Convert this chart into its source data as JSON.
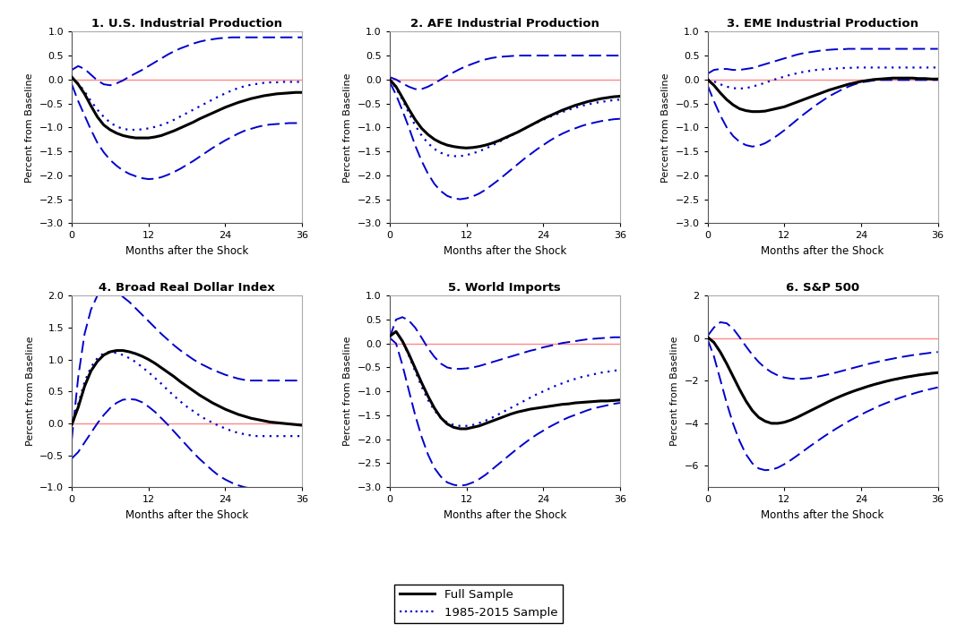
{
  "titles": [
    "1. U.S. Industrial Production",
    "2. AFE Industrial Production",
    "3. EME Industrial Production",
    "4. Broad Real Dollar Index",
    "5. World Imports",
    "6. S&P 500"
  ],
  "xlabel": "Months after the Shock",
  "ylabel": "Percent from Baseline",
  "x": [
    0,
    1,
    2,
    3,
    4,
    5,
    6,
    7,
    8,
    9,
    10,
    11,
    12,
    13,
    14,
    15,
    16,
    17,
    18,
    19,
    20,
    21,
    22,
    23,
    24,
    25,
    26,
    27,
    28,
    29,
    30,
    31,
    32,
    33,
    34,
    35,
    36
  ],
  "panels": {
    "p1": {
      "full_median": [
        0.05,
        -0.1,
        -0.3,
        -0.55,
        -0.78,
        -0.95,
        -1.05,
        -1.12,
        -1.17,
        -1.2,
        -1.22,
        -1.22,
        -1.22,
        -1.2,
        -1.17,
        -1.12,
        -1.07,
        -1.01,
        -0.95,
        -0.89,
        -0.82,
        -0.76,
        -0.7,
        -0.64,
        -0.58,
        -0.53,
        -0.48,
        -0.44,
        -0.4,
        -0.37,
        -0.34,
        -0.32,
        -0.3,
        -0.29,
        -0.28,
        -0.27,
        -0.27
      ],
      "full_upper": [
        0.2,
        0.28,
        0.22,
        0.1,
        -0.02,
        -0.1,
        -0.12,
        -0.08,
        -0.02,
        0.06,
        0.13,
        0.2,
        0.28,
        0.36,
        0.44,
        0.52,
        0.59,
        0.65,
        0.7,
        0.75,
        0.79,
        0.82,
        0.84,
        0.86,
        0.87,
        0.88,
        0.88,
        0.88,
        0.88,
        0.88,
        0.88,
        0.88,
        0.88,
        0.88,
        0.88,
        0.88,
        0.88
      ],
      "full_lower": [
        -0.1,
        -0.45,
        -0.75,
        -1.05,
        -1.32,
        -1.52,
        -1.68,
        -1.8,
        -1.9,
        -1.97,
        -2.02,
        -2.06,
        -2.08,
        -2.07,
        -2.04,
        -1.99,
        -1.93,
        -1.86,
        -1.78,
        -1.7,
        -1.61,
        -1.52,
        -1.43,
        -1.35,
        -1.27,
        -1.2,
        -1.13,
        -1.07,
        -1.03,
        -0.99,
        -0.96,
        -0.94,
        -0.93,
        -0.92,
        -0.91,
        -0.91,
        -0.91
      ],
      "sub_median": [
        0.05,
        -0.08,
        -0.25,
        -0.45,
        -0.63,
        -0.78,
        -0.9,
        -0.98,
        -1.03,
        -1.05,
        -1.05,
        -1.04,
        -1.02,
        -0.99,
        -0.95,
        -0.9,
        -0.84,
        -0.77,
        -0.7,
        -0.63,
        -0.56,
        -0.49,
        -0.42,
        -0.35,
        -0.29,
        -0.23,
        -0.18,
        -0.14,
        -0.11,
        -0.09,
        -0.07,
        -0.06,
        -0.06,
        -0.05,
        -0.05,
        -0.05,
        -0.05
      ],
      "ylim": [
        -3,
        1
      ],
      "yticks": [
        -3,
        -2.5,
        -2,
        -1.5,
        -1,
        -0.5,
        0,
        0.5,
        1
      ]
    },
    "p2": {
      "full_median": [
        0.0,
        -0.15,
        -0.38,
        -0.62,
        -0.84,
        -1.02,
        -1.15,
        -1.25,
        -1.32,
        -1.37,
        -1.4,
        -1.42,
        -1.43,
        -1.42,
        -1.4,
        -1.37,
        -1.33,
        -1.28,
        -1.22,
        -1.16,
        -1.1,
        -1.03,
        -0.96,
        -0.89,
        -0.82,
        -0.76,
        -0.7,
        -0.64,
        -0.59,
        -0.54,
        -0.5,
        -0.46,
        -0.43,
        -0.4,
        -0.38,
        -0.36,
        -0.35
      ],
      "full_upper": [
        0.05,
        0.0,
        -0.08,
        -0.15,
        -0.2,
        -0.2,
        -0.15,
        -0.08,
        0.0,
        0.08,
        0.15,
        0.22,
        0.28,
        0.33,
        0.38,
        0.42,
        0.45,
        0.47,
        0.48,
        0.49,
        0.5,
        0.5,
        0.5,
        0.5,
        0.5,
        0.5,
        0.5,
        0.5,
        0.5,
        0.5,
        0.5,
        0.5,
        0.5,
        0.5,
        0.5,
        0.5,
        0.5
      ],
      "full_lower": [
        -0.05,
        -0.32,
        -0.65,
        -1.0,
        -1.38,
        -1.7,
        -1.97,
        -2.18,
        -2.33,
        -2.43,
        -2.48,
        -2.5,
        -2.48,
        -2.44,
        -2.38,
        -2.3,
        -2.2,
        -2.1,
        -1.99,
        -1.88,
        -1.77,
        -1.66,
        -1.56,
        -1.46,
        -1.37,
        -1.28,
        -1.2,
        -1.13,
        -1.07,
        -1.02,
        -0.97,
        -0.93,
        -0.9,
        -0.87,
        -0.85,
        -0.83,
        -0.82
      ],
      "sub_median": [
        0.0,
        -0.18,
        -0.42,
        -0.7,
        -0.96,
        -1.17,
        -1.33,
        -1.45,
        -1.53,
        -1.58,
        -1.6,
        -1.6,
        -1.58,
        -1.54,
        -1.5,
        -1.44,
        -1.38,
        -1.31,
        -1.24,
        -1.17,
        -1.1,
        -1.03,
        -0.96,
        -0.9,
        -0.84,
        -0.78,
        -0.73,
        -0.68,
        -0.63,
        -0.59,
        -0.55,
        -0.52,
        -0.49,
        -0.47,
        -0.45,
        -0.43,
        -0.42
      ],
      "ylim": [
        -3,
        1
      ],
      "yticks": [
        -3,
        -2.5,
        -2,
        -1.5,
        -1,
        -0.5,
        0,
        0.5,
        1
      ]
    },
    "p3": {
      "full_median": [
        0.0,
        -0.12,
        -0.28,
        -0.42,
        -0.53,
        -0.61,
        -0.65,
        -0.67,
        -0.67,
        -0.66,
        -0.63,
        -0.6,
        -0.57,
        -0.52,
        -0.47,
        -0.42,
        -0.37,
        -0.32,
        -0.27,
        -0.22,
        -0.18,
        -0.14,
        -0.1,
        -0.07,
        -0.04,
        -0.02,
        0.0,
        0.01,
        0.02,
        0.03,
        0.03,
        0.03,
        0.03,
        0.02,
        0.02,
        0.01,
        0.01
      ],
      "full_upper": [
        0.12,
        0.2,
        0.22,
        0.22,
        0.2,
        0.2,
        0.22,
        0.24,
        0.28,
        0.32,
        0.36,
        0.4,
        0.44,
        0.48,
        0.52,
        0.55,
        0.57,
        0.59,
        0.61,
        0.62,
        0.63,
        0.63,
        0.64,
        0.64,
        0.64,
        0.64,
        0.64,
        0.64,
        0.64,
        0.64,
        0.64,
        0.64,
        0.64,
        0.64,
        0.64,
        0.64,
        0.64
      ],
      "full_lower": [
        -0.12,
        -0.45,
        -0.75,
        -1.0,
        -1.18,
        -1.3,
        -1.37,
        -1.4,
        -1.38,
        -1.33,
        -1.25,
        -1.16,
        -1.06,
        -0.95,
        -0.84,
        -0.73,
        -0.63,
        -0.53,
        -0.44,
        -0.35,
        -0.28,
        -0.21,
        -0.15,
        -0.1,
        -0.06,
        -0.04,
        -0.02,
        -0.01,
        -0.01,
        -0.01,
        -0.01,
        -0.01,
        -0.01,
        -0.01,
        -0.01,
        -0.01,
        -0.01
      ],
      "sub_median": [
        0.0,
        -0.04,
        -0.1,
        -0.15,
        -0.18,
        -0.19,
        -0.18,
        -0.15,
        -0.11,
        -0.07,
        -0.02,
        0.02,
        0.06,
        0.1,
        0.13,
        0.16,
        0.18,
        0.2,
        0.21,
        0.22,
        0.23,
        0.24,
        0.24,
        0.25,
        0.25,
        0.25,
        0.25,
        0.25,
        0.25,
        0.25,
        0.25,
        0.25,
        0.25,
        0.25,
        0.25,
        0.25,
        0.25
      ],
      "ylim": [
        -3,
        1
      ],
      "yticks": [
        -3,
        -2.5,
        -2,
        -1.5,
        -1,
        -0.5,
        0,
        0.5,
        1
      ]
    },
    "p4": {
      "full_median": [
        -0.02,
        0.25,
        0.58,
        0.82,
        0.97,
        1.07,
        1.12,
        1.14,
        1.14,
        1.12,
        1.09,
        1.05,
        1.0,
        0.94,
        0.87,
        0.8,
        0.73,
        0.65,
        0.58,
        0.51,
        0.44,
        0.38,
        0.32,
        0.27,
        0.22,
        0.18,
        0.14,
        0.11,
        0.08,
        0.06,
        0.04,
        0.02,
        0.01,
        0.0,
        -0.01,
        -0.02,
        -0.03
      ],
      "full_upper": [
        -0.25,
        0.72,
        1.4,
        1.78,
        2.0,
        2.07,
        2.08,
        2.05,
        1.98,
        1.9,
        1.8,
        1.7,
        1.6,
        1.5,
        1.4,
        1.31,
        1.22,
        1.14,
        1.07,
        1.0,
        0.94,
        0.89,
        0.84,
        0.8,
        0.76,
        0.73,
        0.7,
        0.68,
        0.67,
        0.67,
        0.67,
        0.67,
        0.67,
        0.67,
        0.67,
        0.67,
        0.67
      ],
      "full_lower": [
        -0.55,
        -0.45,
        -0.3,
        -0.15,
        0.0,
        0.13,
        0.24,
        0.32,
        0.37,
        0.38,
        0.37,
        0.33,
        0.26,
        0.18,
        0.08,
        -0.02,
        -0.13,
        -0.24,
        -0.35,
        -0.46,
        -0.56,
        -0.65,
        -0.74,
        -0.82,
        -0.88,
        -0.93,
        -0.97,
        -1.0,
        -1.02,
        -1.04,
        -1.06,
        -1.07,
        -1.08,
        -1.08,
        -1.08,
        -1.08,
        -1.08
      ],
      "sub_median": [
        -0.02,
        0.3,
        0.65,
        0.88,
        1.02,
        1.1,
        1.12,
        1.1,
        1.07,
        1.02,
        0.96,
        0.88,
        0.8,
        0.71,
        0.62,
        0.52,
        0.43,
        0.34,
        0.26,
        0.19,
        0.12,
        0.06,
        0.01,
        -0.04,
        -0.08,
        -0.12,
        -0.15,
        -0.17,
        -0.19,
        -0.2,
        -0.2,
        -0.2,
        -0.2,
        -0.2,
        -0.2,
        -0.2,
        -0.2
      ],
      "ylim": [
        -1,
        2
      ],
      "yticks": [
        -1,
        -0.5,
        0,
        0.5,
        1,
        1.5,
        2
      ]
    },
    "p5": {
      "full_median": [
        0.15,
        0.25,
        0.05,
        -0.22,
        -0.52,
        -0.82,
        -1.1,
        -1.35,
        -1.55,
        -1.68,
        -1.75,
        -1.78,
        -1.78,
        -1.75,
        -1.72,
        -1.67,
        -1.62,
        -1.57,
        -1.52,
        -1.47,
        -1.43,
        -1.4,
        -1.37,
        -1.35,
        -1.33,
        -1.31,
        -1.29,
        -1.27,
        -1.26,
        -1.24,
        -1.23,
        -1.22,
        -1.21,
        -1.2,
        -1.2,
        -1.19,
        -1.18
      ],
      "full_upper": [
        0.12,
        0.5,
        0.55,
        0.48,
        0.33,
        0.12,
        -0.1,
        -0.28,
        -0.42,
        -0.5,
        -0.53,
        -0.53,
        -0.52,
        -0.5,
        -0.47,
        -0.43,
        -0.39,
        -0.35,
        -0.31,
        -0.27,
        -0.23,
        -0.19,
        -0.15,
        -0.12,
        -0.08,
        -0.05,
        -0.02,
        0.01,
        0.03,
        0.05,
        0.07,
        0.09,
        0.1,
        0.11,
        0.12,
        0.13,
        0.13
      ],
      "full_lower": [
        0.12,
        0.0,
        -0.45,
        -0.98,
        -1.5,
        -1.95,
        -2.32,
        -2.6,
        -2.78,
        -2.9,
        -2.95,
        -2.97,
        -2.95,
        -2.9,
        -2.83,
        -2.74,
        -2.63,
        -2.52,
        -2.41,
        -2.3,
        -2.19,
        -2.09,
        -1.99,
        -1.9,
        -1.82,
        -1.74,
        -1.67,
        -1.6,
        -1.54,
        -1.49,
        -1.44,
        -1.39,
        -1.35,
        -1.32,
        -1.29,
        -1.26,
        -1.24
      ],
      "sub_median": [
        0.15,
        0.25,
        0.05,
        -0.25,
        -0.58,
        -0.9,
        -1.18,
        -1.4,
        -1.55,
        -1.65,
        -1.7,
        -1.72,
        -1.72,
        -1.7,
        -1.66,
        -1.61,
        -1.55,
        -1.48,
        -1.41,
        -1.34,
        -1.27,
        -1.2,
        -1.13,
        -1.06,
        -1.0,
        -0.94,
        -0.88,
        -0.83,
        -0.78,
        -0.74,
        -0.7,
        -0.67,
        -0.64,
        -0.61,
        -0.59,
        -0.57,
        -0.55
      ],
      "ylim": [
        -3,
        1
      ],
      "yticks": [
        -3,
        -2.5,
        -2,
        -1.5,
        -1,
        -0.5,
        0,
        0.5,
        1
      ]
    },
    "p6": {
      "full_median": [
        0.05,
        -0.2,
        -0.65,
        -1.2,
        -1.8,
        -2.4,
        -2.95,
        -3.4,
        -3.72,
        -3.9,
        -4.0,
        -4.0,
        -3.95,
        -3.85,
        -3.72,
        -3.57,
        -3.42,
        -3.27,
        -3.12,
        -2.97,
        -2.83,
        -2.7,
        -2.58,
        -2.47,
        -2.37,
        -2.27,
        -2.18,
        -2.1,
        -2.02,
        -1.95,
        -1.89,
        -1.83,
        -1.78,
        -1.73,
        -1.69,
        -1.65,
        -1.62
      ],
      "full_upper": [
        0.1,
        0.5,
        0.75,
        0.7,
        0.45,
        0.05,
        -0.38,
        -0.78,
        -1.12,
        -1.4,
        -1.6,
        -1.75,
        -1.85,
        -1.9,
        -1.92,
        -1.9,
        -1.87,
        -1.82,
        -1.76,
        -1.69,
        -1.62,
        -1.54,
        -1.46,
        -1.38,
        -1.3,
        -1.22,
        -1.15,
        -1.08,
        -1.02,
        -0.96,
        -0.9,
        -0.85,
        -0.8,
        -0.76,
        -0.72,
        -0.68,
        -0.65
      ],
      "full_lower": [
        -0.05,
        -0.85,
        -1.95,
        -3.05,
        -4.02,
        -4.82,
        -5.45,
        -5.88,
        -6.12,
        -6.2,
        -6.18,
        -6.08,
        -5.92,
        -5.73,
        -5.52,
        -5.3,
        -5.08,
        -4.87,
        -4.66,
        -4.46,
        -4.27,
        -4.09,
        -3.91,
        -3.75,
        -3.59,
        -3.44,
        -3.3,
        -3.16,
        -3.04,
        -2.92,
        -2.81,
        -2.71,
        -2.62,
        -2.53,
        -2.45,
        -2.38,
        -2.31
      ],
      "sub_median": [
        0.05,
        -0.2,
        -0.65,
        -1.2,
        -1.8,
        -2.4,
        -2.95,
        -3.4,
        -3.72,
        -3.9,
        -4.0,
        -4.0,
        -3.95,
        -3.85,
        -3.72,
        -3.57,
        -3.42,
        -3.27,
        -3.12,
        -2.97,
        -2.83,
        -2.7,
        -2.58,
        -2.47,
        -2.37,
        -2.27,
        -2.18,
        -2.1,
        -2.02,
        -1.95,
        -1.89,
        -1.83,
        -1.78,
        -1.73,
        -1.69,
        -1.65,
        -1.62
      ],
      "ylim": [
        -7,
        2
      ],
      "yticks": [
        -6,
        -4,
        -2,
        0,
        2
      ]
    }
  },
  "line_color_full": "#000000",
  "line_color_sub": "#0000CD",
  "line_color_ci": "#0000CD",
  "zero_line_color": "#FF8888",
  "background_color": "#FFFFFF",
  "legend_labels": [
    "Full Sample",
    "1985-2015 Sample"
  ]
}
